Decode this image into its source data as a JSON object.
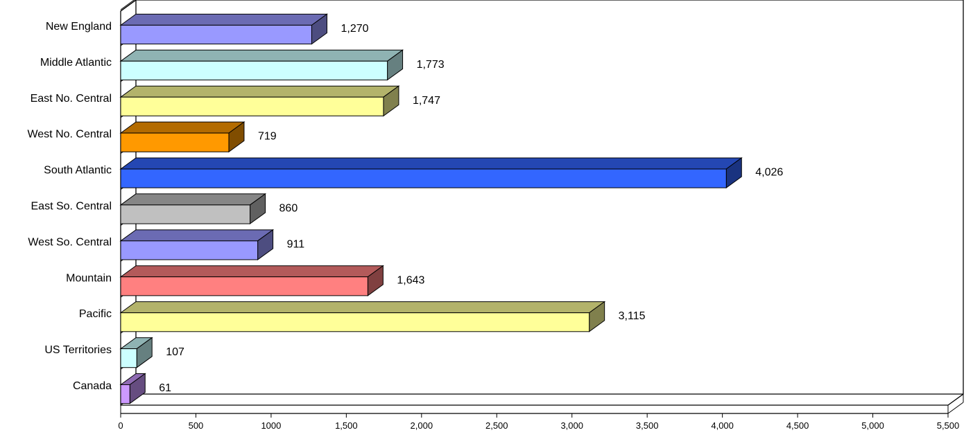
{
  "chart_data": {
    "type": "bar",
    "orientation": "horizontal",
    "style": "3d",
    "categories": [
      "New England",
      "Middle Atlantic",
      "East No. Central",
      "West No. Central",
      "South Atlantic",
      "East So. Central",
      "West So. Central",
      "Mountain",
      "Pacific",
      "US Territories",
      "Canada"
    ],
    "values": [
      1270,
      1773,
      1747,
      719,
      4026,
      860,
      911,
      1643,
      3115,
      107,
      61
    ],
    "value_labels": [
      "1,270",
      "1,773",
      "1,747",
      "719",
      "4,026",
      "860",
      "911",
      "1,643",
      "3,115",
      "107",
      "61"
    ],
    "colors": [
      "#9999ff",
      "#ccffff",
      "#ffff99",
      "#ff9900",
      "#3366ff",
      "#c0c0c0",
      "#9999ff",
      "#ff8080",
      "#ffff99",
      "#ccffff",
      "#cc99ff"
    ],
    "xlim": [
      0,
      5500
    ],
    "xticks": [
      0,
      500,
      1000,
      1500,
      2000,
      2500,
      3000,
      3500,
      4000,
      4500,
      5000,
      5500
    ],
    "xtick_labels": [
      "0",
      "500",
      "1000",
      "1,500",
      "2,000",
      "2,500",
      "3,000",
      "3,500",
      "4,000",
      "4,500",
      "5,000",
      "5,500"
    ],
    "title": "",
    "xlabel": "",
    "ylabel": "",
    "grid": false,
    "legend": "none"
  }
}
